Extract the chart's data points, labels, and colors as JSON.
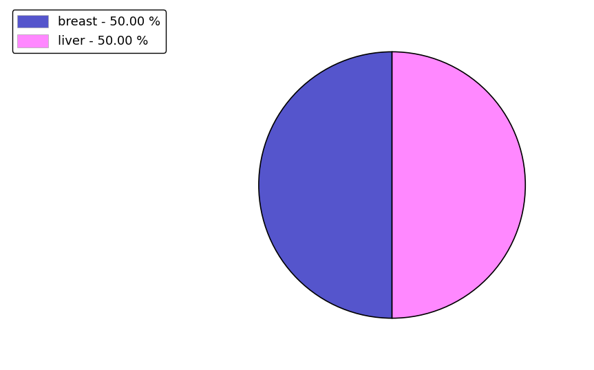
{
  "labels": [
    "breast",
    "liver"
  ],
  "values": [
    50.0,
    50.0
  ],
  "colors": [
    "#5555cc",
    "#ff88ff"
  ],
  "legend_labels": [
    "breast - 50.00 %",
    "liver - 50.00 %"
  ],
  "background_color": "#ffffff",
  "startangle": 90,
  "figsize": [
    8.63,
    5.38
  ],
  "dpi": 100
}
